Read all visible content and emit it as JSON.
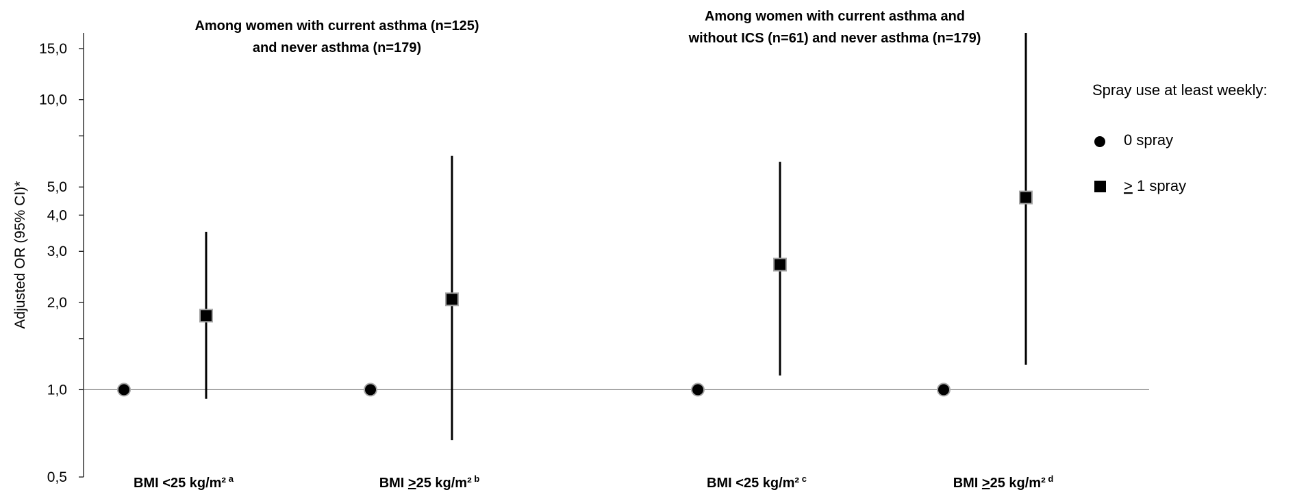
{
  "chart_data": {
    "type": "scatter",
    "ylabel": "Adjusted OR (95% CI)*",
    "yscale": "log",
    "ylim": [
      0.5,
      17
    ],
    "yticks": [
      {
        "value": 0.5,
        "label": "0,5"
      },
      {
        "value": 1.0,
        "label": "1,0"
      },
      {
        "value": 2.0,
        "label": "2,0"
      },
      {
        "value": 3.0,
        "label": "3,0"
      },
      {
        "value": 4.0,
        "label": "4,0"
      },
      {
        "value": 5.0,
        "label": "5,0"
      },
      {
        "value": 10.0,
        "label": "10,0"
      },
      {
        "value": 15.0,
        "label": "15,0"
      }
    ],
    "minor_yticks": [
      1.5,
      7.5
    ],
    "reference_line": 1.0,
    "panel_titles": [
      {
        "lines": [
          "Among women with current asthma (n=125)",
          "and never asthma (n=179)"
        ]
      },
      {
        "lines": [
          "Among women with current asthma and",
          "without ICS (n=61) and never asthma (n=179)"
        ]
      }
    ],
    "categories": [
      {
        "prefix": "BMI ",
        "underline": "",
        "rest": "<25 kg/m²",
        "sup": "a"
      },
      {
        "prefix": "BMI ",
        "underline": ">",
        "rest": "25 kg/m²",
        "sup": "b"
      },
      {
        "prefix": "BMI ",
        "underline": "",
        "rest": "<25 kg/m²",
        "sup": "c"
      },
      {
        "prefix": "BMI ",
        "underline": ">",
        "rest": "25 kg/m²",
        "sup": "d"
      }
    ],
    "legend": {
      "title": "Spray use at least weekly:",
      "items": [
        {
          "marker": "circle",
          "prefix": "",
          "underline": "",
          "rest": "0 spray"
        },
        {
          "marker": "square",
          "prefix": "",
          "underline": ">",
          "rest": " 1 spray"
        }
      ]
    },
    "series": [
      {
        "marker": "circle",
        "points": [
          {
            "category": 0,
            "or": 1.0
          },
          {
            "category": 1,
            "or": 1.0
          },
          {
            "category": 2,
            "or": 1.0
          },
          {
            "category": 3,
            "or": 1.0
          }
        ]
      },
      {
        "marker": "square",
        "points": [
          {
            "category": 0,
            "or": 1.8,
            "ci_low": 0.93,
            "ci_high": 3.5
          },
          {
            "category": 1,
            "or": 2.05,
            "ci_low": 0.67,
            "ci_high": 6.4
          },
          {
            "category": 2,
            "or": 2.7,
            "ci_low": 1.12,
            "ci_high": 6.1
          },
          {
            "category": 3,
            "or": 4.6,
            "ci_low": 1.22,
            "ci_high": 17.0
          }
        ]
      }
    ]
  }
}
